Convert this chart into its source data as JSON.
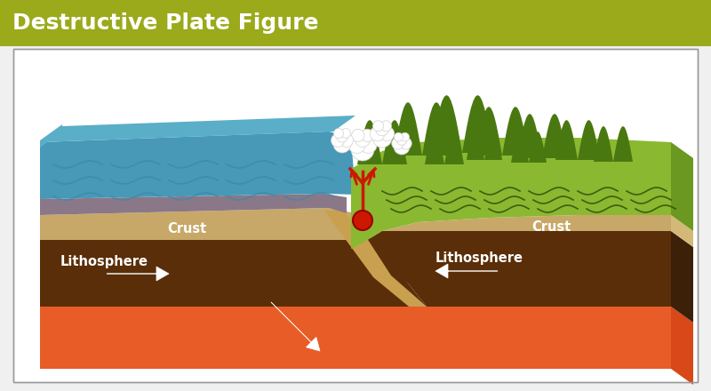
{
  "title": "Destructive Plate Figure",
  "title_bg": "#9aaa1a",
  "title_color": "#ffffff",
  "title_fontsize": 18,
  "bg_color": "#f0f0f0",
  "colors": {
    "ocean_blue_top": "#5aaec8",
    "ocean_blue_mid": "#4898b8",
    "ocean_floor_gray": "#8a7888",
    "crust_tan": "#c8a868",
    "crust_tan2": "#d4b878",
    "litho_brown": "#5a2e08",
    "litho_dark": "#3d2008",
    "mantle_orange": "#e85c28",
    "mantle_orange2": "#d84818",
    "green_land": "#8ab830",
    "green_dark": "#4a7810",
    "green_mid": "#6a9820",
    "subduct_tan": "#c8a050",
    "white": "#ffffff",
    "red_seismic": "#cc1800",
    "border": "#888888",
    "wave_blue": "#3888a8"
  },
  "labels": {
    "title": "Destructive Plate Figure",
    "crust_left": "Crust",
    "crust_right": "Crust",
    "litho_left": "Lithosphere",
    "litho_right": "Lithosphere"
  }
}
